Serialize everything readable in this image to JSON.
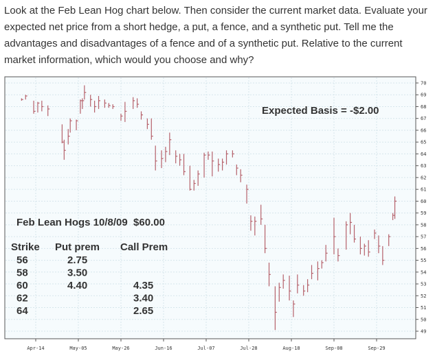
{
  "question": "Look at the Feb Lean Hog chart below. Then consider the current market data. Evaluate your expected net price from a short hedge, a put, a fence, and a synthetic put. Tell me the advantages and disadvantages of a fence and of a synthetic put. Relative to the current market information, which would you choose and why?",
  "chart_data": {
    "type": "ohlc-bar",
    "xlabel": "",
    "ylabel": "",
    "ylim": [
      49,
      70
    ],
    "yticks": [
      "70",
      "69",
      "68",
      "67",
      "66",
      "65",
      "64",
      "63",
      "62",
      "61",
      "60",
      "59",
      "58",
      "57",
      "56",
      "55",
      "54",
      "53",
      "52",
      "51",
      "50",
      "49"
    ],
    "xticks": [
      "Apr-14",
      "May-05",
      "May-26",
      "Jun-16",
      "Jul-07",
      "Jul-28",
      "Aug-18",
      "Sep-08",
      "Sep-29"
    ],
    "grid": true,
    "bar_color": "#b5606a",
    "bars_date_high_low_close": [
      [
        "Apr-07",
        68.7,
        68.5,
        68.6
      ],
      [
        "Apr-09",
        69.0,
        68.6,
        68.9
      ],
      [
        "Apr-13",
        68.5,
        67.4,
        67.6
      ],
      [
        "Apr-15",
        68.4,
        67.5,
        68.3
      ],
      [
        "Apr-17",
        68.5,
        67.6,
        68.0
      ],
      [
        "Apr-20",
        68.1,
        67.2,
        67.8
      ],
      [
        "Apr-27",
        66.5,
        64.9,
        65.0
      ],
      [
        "Apr-28",
        65.2,
        63.5,
        64.3
      ],
      [
        "Apr-30",
        66.1,
        64.8,
        65.5
      ],
      [
        "May-01",
        67.0,
        65.8,
        66.8
      ],
      [
        "May-04",
        66.9,
        66.0,
        66.8
      ],
      [
        "May-06",
        68.6,
        67.4,
        68.5
      ],
      [
        "May-07",
        68.7,
        67.8,
        68.5
      ],
      [
        "May-08",
        69.8,
        68.6,
        69.2
      ],
      [
        "May-11",
        69.0,
        68.0,
        68.6
      ],
      [
        "May-13",
        68.5,
        67.5,
        68.0
      ],
      [
        "May-15",
        68.9,
        67.8,
        68.5
      ],
      [
        "May-18",
        68.6,
        67.9,
        68.3
      ],
      [
        "May-20",
        68.3,
        67.9,
        68.1
      ],
      [
        "May-22",
        68.2,
        67.8,
        68.0
      ],
      [
        "May-26",
        67.4,
        66.8,
        67.2
      ],
      [
        "May-28",
        68.4,
        66.7,
        67.6
      ],
      [
        "Jun-01",
        68.8,
        67.8,
        68.5
      ],
      [
        "Jun-03",
        68.7,
        67.9,
        68.2
      ],
      [
        "Jun-05",
        67.6,
        66.9,
        67.3
      ],
      [
        "Jun-08",
        67.0,
        66.1,
        66.5
      ],
      [
        "Jun-10",
        67.0,
        65.2,
        65.5
      ],
      [
        "Jun-12",
        64.7,
        62.6,
        63.4
      ],
      [
        "Jun-15",
        64.3,
        62.8,
        63.6
      ],
      [
        "Jun-17",
        64.6,
        63.3,
        64.2
      ],
      [
        "Jun-19",
        65.8,
        63.9,
        65.2
      ],
      [
        "Jun-22",
        64.3,
        63.2,
        63.8
      ],
      [
        "Jun-24",
        64.0,
        63.0,
        63.5
      ],
      [
        "Jun-26",
        64.0,
        62.2,
        62.5
      ],
      [
        "Jun-29",
        63.0,
        60.9,
        61.0
      ],
      [
        "Jul-01",
        61.8,
        60.9,
        61.5
      ],
      [
        "Jul-03",
        62.6,
        61.3,
        62.3
      ],
      [
        "Jul-06",
        64.1,
        62.0,
        63.9
      ],
      [
        "Jul-08",
        64.2,
        63.5,
        63.9
      ],
      [
        "Jul-10",
        64.2,
        62.1,
        63.4
      ],
      [
        "Jul-13",
        63.6,
        62.5,
        63.1
      ],
      [
        "Jul-15",
        63.6,
        62.6,
        63.3
      ],
      [
        "Jul-17",
        64.3,
        63.1,
        64.0
      ],
      [
        "Jul-20",
        64.3,
        63.7,
        64.0
      ],
      [
        "Jul-22",
        63.1,
        62.2,
        62.8
      ],
      [
        "Jul-24",
        62.7,
        61.6,
        62.2
      ],
      [
        "Jul-27",
        61.4,
        59.8,
        61.0
      ],
      [
        "Jul-29",
        58.8,
        57.5,
        58.3
      ],
      [
        "Jul-31",
        58.7,
        57.1,
        58.3
      ],
      [
        "Aug-03",
        59.7,
        58.0,
        58.5
      ],
      [
        "Aug-05",
        58.0,
        55.6,
        56.0
      ],
      [
        "Aug-07",
        54.8,
        52.8,
        53.8
      ],
      [
        "Aug-10",
        52.8,
        49.1,
        50.6
      ],
      [
        "Aug-12",
        53.1,
        51.5,
        52.7
      ],
      [
        "Aug-14",
        53.8,
        52.6,
        53.3
      ],
      [
        "Aug-17",
        53.7,
        51.6,
        52.4
      ],
      [
        "Aug-19",
        51.6,
        50.2,
        51.3
      ],
      [
        "Aug-21",
        53.8,
        52.2,
        52.9
      ],
      [
        "Aug-24",
        52.9,
        52.0,
        52.4
      ],
      [
        "Aug-26",
        53.4,
        52.3,
        52.9
      ],
      [
        "Aug-28",
        54.6,
        53.4,
        53.9
      ],
      [
        "Aug-31",
        54.9,
        53.3,
        54.3
      ],
      [
        "Sep-02",
        55.0,
        54.3,
        54.8
      ],
      [
        "Sep-04",
        56.3,
        54.9,
        55.6
      ],
      [
        "Sep-08",
        58.6,
        55.5,
        57.0
      ],
      [
        "Sep-10",
        56.0,
        54.9,
        55.4
      ],
      [
        "Sep-14",
        58.3,
        55.9,
        58.0
      ],
      [
        "Sep-16",
        59.0,
        57.2,
        58.2
      ],
      [
        "Sep-18",
        58.0,
        56.5,
        56.8
      ],
      [
        "Sep-21",
        57.0,
        55.5,
        56.0
      ],
      [
        "Sep-23",
        56.4,
        55.4,
        56.2
      ],
      [
        "Sep-25",
        56.7,
        55.3,
        55.7
      ],
      [
        "Sep-28",
        57.6,
        56.8,
        57.3
      ],
      [
        "Sep-30",
        57.1,
        55.6,
        56.2
      ],
      [
        "Oct-02",
        56.2,
        54.6,
        55.0
      ],
      [
        "Oct-05",
        57.2,
        56.2,
        57.0
      ],
      [
        "Oct-07",
        59.0,
        58.4,
        58.8
      ],
      [
        "Oct-08",
        60.4,
        58.5,
        60.0
      ]
    ],
    "annotations": {
      "basis": "Expected Basis = -$2.00",
      "quote": "Feb Lean Hogs 10/8/09  $60.00",
      "table": {
        "headers": [
          "Strike",
          "Put prem",
          "Call Prem"
        ],
        "rows": [
          [
            "56",
            "2.75",
            ""
          ],
          [
            "58",
            "3.50",
            ""
          ],
          [
            "60",
            "4.40",
            "4.35"
          ],
          [
            "62",
            "",
            "3.40"
          ],
          [
            "64",
            "",
            "2.65"
          ]
        ]
      }
    }
  }
}
